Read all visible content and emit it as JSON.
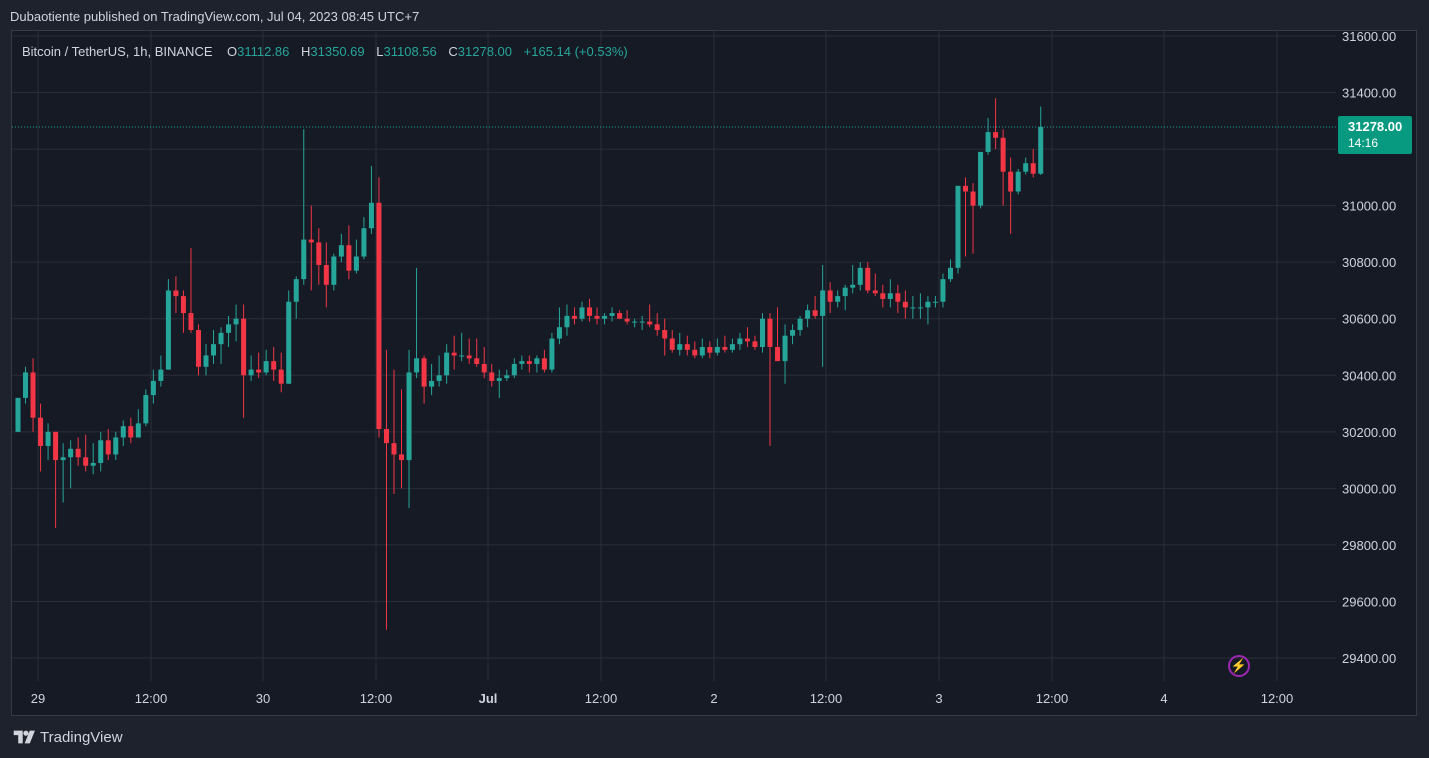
{
  "header": {
    "published": "Dubaotiente published on TradingView.com, Jul 04, 2023 08:45 UTC+7"
  },
  "legend": {
    "symbol": "Bitcoin / TetherUS, 1h, BINANCE",
    "o_label": "O",
    "o_value": "31112.86",
    "h_label": "H",
    "h_value": "31350.69",
    "l_label": "L",
    "l_value": "31108.56",
    "c_label": "C",
    "c_value": "31278.00",
    "change": "+165.14 (+0.53%)"
  },
  "price_tag": {
    "price": "31278.00",
    "countdown": "14:16"
  },
  "footer": {
    "brand": "TradingView"
  },
  "colors": {
    "up": "#26a69a",
    "down": "#f23645",
    "background": "#161a25",
    "grid": "#2a2e39",
    "text": "#d1d4dc",
    "price_line": "#26a69a",
    "bolt": "#9c27b0"
  },
  "icons": {
    "lightning": "lightning-icon",
    "logo": "tradingview-logo-icon"
  },
  "chart_data": {
    "type": "candlestick",
    "title": "Bitcoin / TetherUS, 1h, BINANCE",
    "ylim": [
      29300,
      31600
    ],
    "y_ticks": [
      "31600.00",
      "31400.00",
      "31200.00",
      "31000.00",
      "30800.00",
      "30600.00",
      "30400.00",
      "30200.00",
      "30000.00",
      "29800.00",
      "29600.00",
      "29400.00"
    ],
    "x_ticks": [
      "29",
      "12:00",
      "30",
      "12:00",
      "Jul",
      "12:00",
      "2",
      "12:00",
      "3",
      "12:00",
      "4",
      "12:00"
    ],
    "last_price": 31278.0,
    "grid": true,
    "series": [
      {
        "o": 30200,
        "h": 30320,
        "l": 30200,
        "c": 30320
      },
      {
        "o": 30320,
        "h": 30430,
        "l": 30300,
        "c": 30410
      },
      {
        "o": 30410,
        "h": 30460,
        "l": 30200,
        "c": 30250
      },
      {
        "o": 30250,
        "h": 30300,
        "l": 30060,
        "c": 30150
      },
      {
        "o": 30150,
        "h": 30230,
        "l": 30100,
        "c": 30200
      },
      {
        "o": 30200,
        "h": 30200,
        "l": 29860,
        "c": 30100
      },
      {
        "o": 30100,
        "h": 30160,
        "l": 29950,
        "c": 30110
      },
      {
        "o": 30110,
        "h": 30170,
        "l": 30000,
        "c": 30140
      },
      {
        "o": 30140,
        "h": 30180,
        "l": 30080,
        "c": 30110
      },
      {
        "o": 30110,
        "h": 30190,
        "l": 30060,
        "c": 30080
      },
      {
        "o": 30080,
        "h": 30160,
        "l": 30050,
        "c": 30090
      },
      {
        "o": 30090,
        "h": 30200,
        "l": 30060,
        "c": 30170
      },
      {
        "o": 30170,
        "h": 30210,
        "l": 30100,
        "c": 30120
      },
      {
        "o": 30120,
        "h": 30200,
        "l": 30100,
        "c": 30180
      },
      {
        "o": 30180,
        "h": 30240,
        "l": 30150,
        "c": 30220
      },
      {
        "o": 30220,
        "h": 30250,
        "l": 30160,
        "c": 30180
      },
      {
        "o": 30180,
        "h": 30280,
        "l": 30180,
        "c": 30230
      },
      {
        "o": 30230,
        "h": 30350,
        "l": 30220,
        "c": 30330
      },
      {
        "o": 30330,
        "h": 30420,
        "l": 30300,
        "c": 30380
      },
      {
        "o": 30380,
        "h": 30470,
        "l": 30360,
        "c": 30420
      },
      {
        "o": 30420,
        "h": 30740,
        "l": 30420,
        "c": 30700
      },
      {
        "o": 30700,
        "h": 30750,
        "l": 30620,
        "c": 30680
      },
      {
        "o": 30680,
        "h": 30700,
        "l": 30550,
        "c": 30620
      },
      {
        "o": 30620,
        "h": 30850,
        "l": 30550,
        "c": 30560
      },
      {
        "o": 30560,
        "h": 30580,
        "l": 30400,
        "c": 30430
      },
      {
        "o": 30430,
        "h": 30510,
        "l": 30400,
        "c": 30470
      },
      {
        "o": 30470,
        "h": 30560,
        "l": 30440,
        "c": 30510
      },
      {
        "o": 30510,
        "h": 30570,
        "l": 30440,
        "c": 30550
      },
      {
        "o": 30550,
        "h": 30610,
        "l": 30500,
        "c": 30580
      },
      {
        "o": 30580,
        "h": 30650,
        "l": 30520,
        "c": 30600
      },
      {
        "o": 30600,
        "h": 30650,
        "l": 30250,
        "c": 30400
      },
      {
        "o": 30400,
        "h": 30470,
        "l": 30380,
        "c": 30420
      },
      {
        "o": 30420,
        "h": 30480,
        "l": 30390,
        "c": 30410
      },
      {
        "o": 30410,
        "h": 30490,
        "l": 30400,
        "c": 30450
      },
      {
        "o": 30450,
        "h": 30500,
        "l": 30380,
        "c": 30420
      },
      {
        "o": 30420,
        "h": 30480,
        "l": 30340,
        "c": 30370
      },
      {
        "o": 30370,
        "h": 30700,
        "l": 30370,
        "c": 30660
      },
      {
        "o": 30660,
        "h": 30750,
        "l": 30600,
        "c": 30740
      },
      {
        "o": 30740,
        "h": 31270,
        "l": 30720,
        "c": 30880
      },
      {
        "o": 30880,
        "h": 31000,
        "l": 30700,
        "c": 30870
      },
      {
        "o": 30870,
        "h": 30920,
        "l": 30720,
        "c": 30790
      },
      {
        "o": 30790,
        "h": 30870,
        "l": 30640,
        "c": 30720
      },
      {
        "o": 30720,
        "h": 30830,
        "l": 30700,
        "c": 30820
      },
      {
        "o": 30820,
        "h": 30900,
        "l": 30800,
        "c": 30860
      },
      {
        "o": 30860,
        "h": 30930,
        "l": 30740,
        "c": 30770
      },
      {
        "o": 30770,
        "h": 30880,
        "l": 30760,
        "c": 30820
      },
      {
        "o": 30820,
        "h": 30960,
        "l": 30810,
        "c": 30920
      },
      {
        "o": 30920,
        "h": 31140,
        "l": 30900,
        "c": 31010
      },
      {
        "o": 31010,
        "h": 31100,
        "l": 30180,
        "c": 30210
      },
      {
        "o": 30210,
        "h": 30490,
        "l": 29500,
        "c": 30160
      },
      {
        "o": 30160,
        "h": 30420,
        "l": 29980,
        "c": 30120
      },
      {
        "o": 30120,
        "h": 30350,
        "l": 30000,
        "c": 30100
      },
      {
        "o": 30100,
        "h": 30490,
        "l": 29930,
        "c": 30410
      },
      {
        "o": 30410,
        "h": 30780,
        "l": 30390,
        "c": 30460
      },
      {
        "o": 30460,
        "h": 30470,
        "l": 30300,
        "c": 30360
      },
      {
        "o": 30360,
        "h": 30440,
        "l": 30330,
        "c": 30380
      },
      {
        "o": 30380,
        "h": 30470,
        "l": 30360,
        "c": 30400
      },
      {
        "o": 30400,
        "h": 30510,
        "l": 30370,
        "c": 30480
      },
      {
        "o": 30480,
        "h": 30540,
        "l": 30420,
        "c": 30470
      },
      {
        "o": 30470,
        "h": 30550,
        "l": 30450,
        "c": 30470
      },
      {
        "o": 30470,
        "h": 30530,
        "l": 30440,
        "c": 30460
      },
      {
        "o": 30460,
        "h": 30530,
        "l": 30430,
        "c": 30440
      },
      {
        "o": 30440,
        "h": 30500,
        "l": 30390,
        "c": 30410
      },
      {
        "o": 30410,
        "h": 30440,
        "l": 30360,
        "c": 30380
      },
      {
        "o": 30380,
        "h": 30420,
        "l": 30320,
        "c": 30390
      },
      {
        "o": 30390,
        "h": 30420,
        "l": 30380,
        "c": 30400
      },
      {
        "o": 30400,
        "h": 30460,
        "l": 30390,
        "c": 30440
      },
      {
        "o": 30440,
        "h": 30470,
        "l": 30420,
        "c": 30450
      },
      {
        "o": 30450,
        "h": 30470,
        "l": 30410,
        "c": 30440
      },
      {
        "o": 30440,
        "h": 30470,
        "l": 30410,
        "c": 30460
      },
      {
        "o": 30460,
        "h": 30490,
        "l": 30410,
        "c": 30420
      },
      {
        "o": 30420,
        "h": 30550,
        "l": 30410,
        "c": 30530
      },
      {
        "o": 30530,
        "h": 30640,
        "l": 30510,
        "c": 30570
      },
      {
        "o": 30570,
        "h": 30650,
        "l": 30540,
        "c": 30610
      },
      {
        "o": 30610,
        "h": 30640,
        "l": 30580,
        "c": 30600
      },
      {
        "o": 30600,
        "h": 30660,
        "l": 30590,
        "c": 30640
      },
      {
        "o": 30640,
        "h": 30670,
        "l": 30590,
        "c": 30610
      },
      {
        "o": 30610,
        "h": 30640,
        "l": 30580,
        "c": 30600
      },
      {
        "o": 30600,
        "h": 30620,
        "l": 30580,
        "c": 30610
      },
      {
        "o": 30610,
        "h": 30640,
        "l": 30590,
        "c": 30620
      },
      {
        "o": 30620,
        "h": 30630,
        "l": 30600,
        "c": 30600
      },
      {
        "o": 30600,
        "h": 30630,
        "l": 30580,
        "c": 30590
      },
      {
        "o": 30590,
        "h": 30600,
        "l": 30570,
        "c": 30590
      },
      {
        "o": 30590,
        "h": 30610,
        "l": 30560,
        "c": 30590
      },
      {
        "o": 30590,
        "h": 30650,
        "l": 30570,
        "c": 30580
      },
      {
        "o": 30580,
        "h": 30620,
        "l": 30540,
        "c": 30560
      },
      {
        "o": 30560,
        "h": 30600,
        "l": 30470,
        "c": 30530
      },
      {
        "o": 30530,
        "h": 30560,
        "l": 30480,
        "c": 30490
      },
      {
        "o": 30490,
        "h": 30550,
        "l": 30470,
        "c": 30510
      },
      {
        "o": 30510,
        "h": 30540,
        "l": 30470,
        "c": 30490
      },
      {
        "o": 30490,
        "h": 30520,
        "l": 30460,
        "c": 30470
      },
      {
        "o": 30470,
        "h": 30530,
        "l": 30460,
        "c": 30500
      },
      {
        "o": 30500,
        "h": 30520,
        "l": 30460,
        "c": 30480
      },
      {
        "o": 30480,
        "h": 30530,
        "l": 30470,
        "c": 30500
      },
      {
        "o": 30500,
        "h": 30540,
        "l": 30480,
        "c": 30490
      },
      {
        "o": 30490,
        "h": 30530,
        "l": 30480,
        "c": 30510
      },
      {
        "o": 30510,
        "h": 30550,
        "l": 30490,
        "c": 30530
      },
      {
        "o": 30530,
        "h": 30570,
        "l": 30500,
        "c": 30520
      },
      {
        "o": 30520,
        "h": 30540,
        "l": 30490,
        "c": 30500
      },
      {
        "o": 30500,
        "h": 30620,
        "l": 30480,
        "c": 30600
      },
      {
        "o": 30600,
        "h": 30620,
        "l": 30150,
        "c": 30500
      },
      {
        "o": 30500,
        "h": 30640,
        "l": 30470,
        "c": 30450
      },
      {
        "o": 30450,
        "h": 30580,
        "l": 30370,
        "c": 30540
      },
      {
        "o": 30540,
        "h": 30580,
        "l": 30510,
        "c": 30560
      },
      {
        "o": 30560,
        "h": 30610,
        "l": 30540,
        "c": 30600
      },
      {
        "o": 30600,
        "h": 30650,
        "l": 30570,
        "c": 30630
      },
      {
        "o": 30630,
        "h": 30680,
        "l": 30600,
        "c": 30610
      },
      {
        "o": 30610,
        "h": 30790,
        "l": 30430,
        "c": 30700
      },
      {
        "o": 30700,
        "h": 30730,
        "l": 30620,
        "c": 30660
      },
      {
        "o": 30660,
        "h": 30700,
        "l": 30640,
        "c": 30680
      },
      {
        "o": 30680,
        "h": 30720,
        "l": 30630,
        "c": 30710
      },
      {
        "o": 30710,
        "h": 30790,
        "l": 30690,
        "c": 30720
      },
      {
        "o": 30720,
        "h": 30800,
        "l": 30700,
        "c": 30780
      },
      {
        "o": 30780,
        "h": 30800,
        "l": 30690,
        "c": 30700
      },
      {
        "o": 30700,
        "h": 30760,
        "l": 30680,
        "c": 30690
      },
      {
        "o": 30690,
        "h": 30720,
        "l": 30640,
        "c": 30670
      },
      {
        "o": 30670,
        "h": 30740,
        "l": 30640,
        "c": 30690
      },
      {
        "o": 30690,
        "h": 30720,
        "l": 30620,
        "c": 30660
      },
      {
        "o": 30660,
        "h": 30700,
        "l": 30600,
        "c": 30640
      },
      {
        "o": 30640,
        "h": 30680,
        "l": 30600,
        "c": 30640
      },
      {
        "o": 30640,
        "h": 30690,
        "l": 30600,
        "c": 30640
      },
      {
        "o": 30640,
        "h": 30680,
        "l": 30580,
        "c": 30660
      },
      {
        "o": 30660,
        "h": 30680,
        "l": 30640,
        "c": 30660
      },
      {
        "o": 30660,
        "h": 30760,
        "l": 30640,
        "c": 30740
      },
      {
        "o": 30740,
        "h": 30810,
        "l": 30730,
        "c": 30780
      },
      {
        "o": 30780,
        "h": 31070,
        "l": 30760,
        "c": 31070
      },
      {
        "o": 31070,
        "h": 31100,
        "l": 30820,
        "c": 31050
      },
      {
        "o": 31050,
        "h": 31080,
        "l": 30830,
        "c": 31000
      },
      {
        "o": 31000,
        "h": 31190,
        "l": 30990,
        "c": 31190
      },
      {
        "o": 31190,
        "h": 31310,
        "l": 31180,
        "c": 31260
      },
      {
        "o": 31260,
        "h": 31380,
        "l": 31200,
        "c": 31240
      },
      {
        "o": 31240,
        "h": 31270,
        "l": 31000,
        "c": 31120
      },
      {
        "o": 31120,
        "h": 31170,
        "l": 30900,
        "c": 31050
      },
      {
        "o": 31050,
        "h": 31130,
        "l": 31040,
        "c": 31120
      },
      {
        "o": 31120,
        "h": 31170,
        "l": 31110,
        "c": 31150
      },
      {
        "o": 31150,
        "h": 31200,
        "l": 31100,
        "c": 31112.86
      },
      {
        "o": 31112.86,
        "h": 31350.69,
        "l": 31108.56,
        "c": 31278.0
      }
    ]
  }
}
